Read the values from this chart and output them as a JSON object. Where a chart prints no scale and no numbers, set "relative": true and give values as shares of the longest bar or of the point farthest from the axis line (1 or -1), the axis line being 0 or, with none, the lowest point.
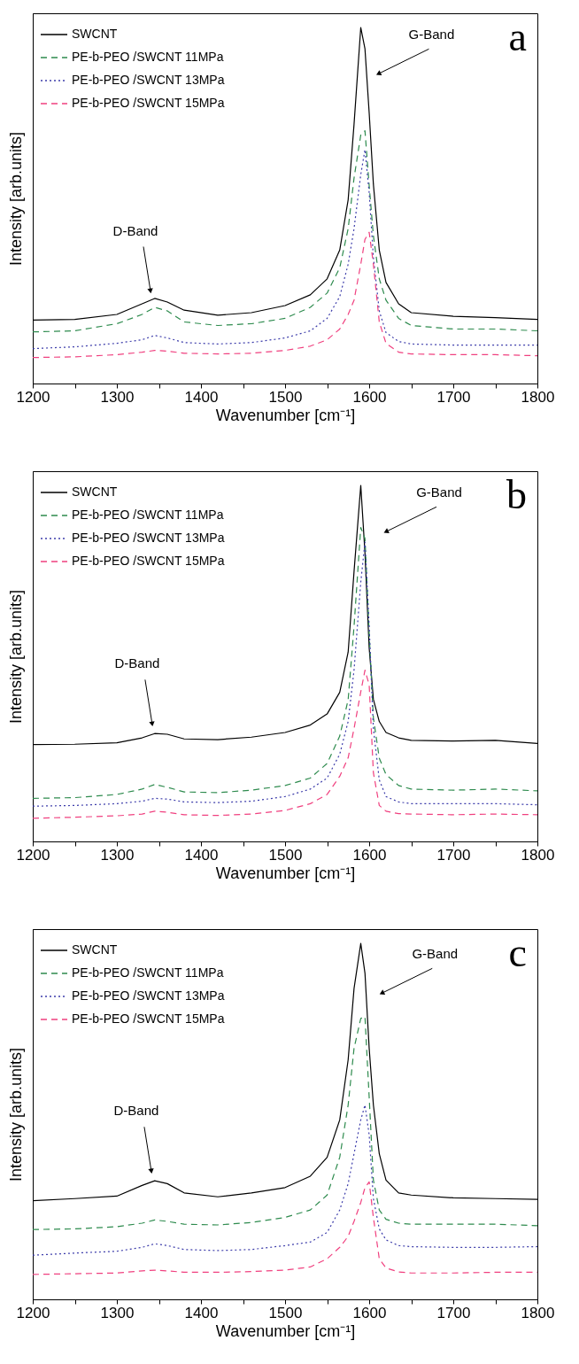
{
  "chart_data": [
    {
      "type": "line",
      "relative": true,
      "xlabel": "Wavenumber [cm⁻¹]",
      "ylabel": "Intensity [arb.units]",
      "xlim": [
        1200,
        1800
      ],
      "xticks": [
        1200,
        {
          "value": 1250,
          "label": null
        },
        1300,
        {
          "value": 1350,
          "label": null
        },
        1400,
        {
          "value": 1450,
          "label": null
        },
        1500,
        {
          "value": 1550,
          "label": null
        },
        1600,
        {
          "value": 1650,
          "label": null
        },
        1700,
        {
          "value": 1750,
          "label": null
        },
        1800
      ],
      "grid": false,
      "legend": "top left",
      "annotations": [
        "a",
        {
          "text": "D-Band",
          "x": 1340,
          "y": 0.26
        },
        {
          "text": "G-Band",
          "x": 1611,
          "y": 0.87
        }
      ],
      "x": [
        1200,
        1250,
        1300,
        1330,
        1345,
        1360,
        1380,
        1420,
        1460,
        1500,
        1530,
        1550,
        1565,
        1575,
        1582,
        1590,
        1595,
        1600,
        1605,
        1612,
        1620,
        1635,
        1650,
        1700,
        1750,
        1800
      ],
      "series": [
        {
          "name": "SWCNT",
          "color": "#000000",
          "line_style": "solid",
          "values": [
            0.178,
            0.18,
            0.194,
            0.224,
            0.239,
            0.229,
            0.206,
            0.192,
            0.199,
            0.219,
            0.249,
            0.294,
            0.375,
            0.516,
            0.728,
            1.0,
            0.94,
            0.76,
            0.56,
            0.375,
            0.284,
            0.224,
            0.199,
            0.189,
            0.185,
            0.18
          ]
        },
        {
          "name": "PE-b-PEO /SWCNT 11MPa",
          "color": "#2e8b4e",
          "line_style": "dashed",
          "values": [
            0.145,
            0.148,
            0.168,
            0.194,
            0.214,
            0.204,
            0.173,
            0.163,
            0.168,
            0.183,
            0.214,
            0.254,
            0.325,
            0.435,
            0.577,
            0.698,
            0.71,
            0.556,
            0.415,
            0.294,
            0.234,
            0.183,
            0.163,
            0.153,
            0.153,
            0.148
          ]
        },
        {
          "name": "PE-b-PEO /SWCNT 13MPa",
          "color": "#3c3caa",
          "line_style": "dotted",
          "values": [
            0.098,
            0.103,
            0.113,
            0.123,
            0.135,
            0.128,
            0.115,
            0.111,
            0.115,
            0.128,
            0.148,
            0.183,
            0.244,
            0.335,
            0.435,
            0.587,
            0.657,
            0.536,
            0.355,
            0.204,
            0.143,
            0.118,
            0.111,
            0.108,
            0.108,
            0.108
          ]
        },
        {
          "name": "PE-b-PEO /SWCNT 15MPa",
          "color": "#f0407f",
          "line_style": "dashed",
          "values": [
            0.073,
            0.075,
            0.081,
            0.088,
            0.093,
            0.091,
            0.085,
            0.083,
            0.085,
            0.093,
            0.105,
            0.123,
            0.153,
            0.194,
            0.234,
            0.335,
            0.405,
            0.425,
            0.335,
            0.173,
            0.113,
            0.088,
            0.083,
            0.081,
            0.081,
            0.078
          ]
        }
      ]
    },
    {
      "type": "line",
      "relative": true,
      "xlabel": "Wavenumber [cm⁻¹]",
      "ylabel": "Intensity [arb.units]",
      "xlim": [
        1200,
        1800
      ],
      "xticks": [
        1200,
        {
          "value": 1250,
          "label": null
        },
        1300,
        {
          "value": 1350,
          "label": null
        },
        1400,
        {
          "value": 1450,
          "label": null
        },
        1500,
        {
          "value": 1550,
          "label": null
        },
        1600,
        {
          "value": 1650,
          "label": null
        },
        1700,
        {
          "value": 1750,
          "label": null
        },
        1800
      ],
      "grid": false,
      "legend": "top left",
      "annotations": [
        "b",
        {
          "text": "D-Band",
          "x": 1342,
          "y": 0.33
        },
        {
          "text": "G-Band",
          "x": 1620,
          "y": 0.87
        }
      ],
      "x": [
        1200,
        1250,
        1300,
        1330,
        1345,
        1360,
        1380,
        1420,
        1460,
        1500,
        1530,
        1550,
        1565,
        1575,
        1582,
        1590,
        1595,
        1600,
        1605,
        1612,
        1620,
        1635,
        1650,
        1700,
        1750,
        1800
      ],
      "series": [
        {
          "name": "SWCNT",
          "color": "#000000",
          "line_style": "solid",
          "values": [
            0.272,
            0.273,
            0.277,
            0.291,
            0.303,
            0.301,
            0.288,
            0.286,
            0.293,
            0.306,
            0.327,
            0.358,
            0.419,
            0.532,
            0.758,
            1.0,
            0.81,
            0.543,
            0.399,
            0.337,
            0.306,
            0.291,
            0.284,
            0.282,
            0.284,
            0.275
          ]
        },
        {
          "name": "PE-b-PEO /SWCNT 11MPa",
          "color": "#2e8b4e",
          "line_style": "dashed",
          "values": [
            0.121,
            0.123,
            0.132,
            0.147,
            0.16,
            0.152,
            0.139,
            0.137,
            0.144,
            0.157,
            0.178,
            0.219,
            0.296,
            0.398,
            0.604,
            0.882,
            0.851,
            0.584,
            0.347,
            0.234,
            0.188,
            0.157,
            0.147,
            0.144,
            0.147,
            0.142
          ]
        },
        {
          "name": "PE-b-PEO /SWCNT 13MPa",
          "color": "#3c3caa",
          "line_style": "dotted",
          "values": [
            0.099,
            0.101,
            0.106,
            0.113,
            0.121,
            0.119,
            0.111,
            0.109,
            0.113,
            0.126,
            0.147,
            0.178,
            0.245,
            0.337,
            0.481,
            0.728,
            0.841,
            0.604,
            0.317,
            0.173,
            0.126,
            0.111,
            0.106,
            0.106,
            0.106,
            0.103
          ]
        },
        {
          "name": "PE-b-PEO /SWCNT 15MPa",
          "color": "#f0407f",
          "line_style": "dashed",
          "values": [
            0.065,
            0.068,
            0.072,
            0.077,
            0.085,
            0.082,
            0.075,
            0.073,
            0.077,
            0.087,
            0.106,
            0.132,
            0.183,
            0.235,
            0.317,
            0.42,
            0.481,
            0.44,
            0.193,
            0.101,
            0.085,
            0.078,
            0.077,
            0.075,
            0.077,
            0.075
          ]
        }
      ]
    },
    {
      "type": "line",
      "relative": true,
      "xlabel": "Wavenumber [cm⁻¹]",
      "ylabel": "Intensity [arb.units]",
      "xlim": [
        1200,
        1800
      ],
      "xticks": [
        1200,
        {
          "value": 1250,
          "label": null
        },
        1300,
        {
          "value": 1350,
          "label": null
        },
        1400,
        {
          "value": 1450,
          "label": null
        },
        1500,
        {
          "value": 1550,
          "label": null
        },
        1600,
        {
          "value": 1650,
          "label": null
        },
        1700,
        {
          "value": 1750,
          "label": null
        },
        1800
      ],
      "grid": false,
      "legend": "top left",
      "annotations": [
        "c",
        {
          "text": "D-Band",
          "x": 1341,
          "y": 0.36
        },
        {
          "text": "G-Band",
          "x": 1615,
          "y": 0.86
        }
      ],
      "x": [
        1200,
        1250,
        1300,
        1330,
        1345,
        1360,
        1380,
        1420,
        1460,
        1500,
        1530,
        1550,
        1565,
        1575,
        1582,
        1590,
        1595,
        1600,
        1605,
        1612,
        1620,
        1635,
        1650,
        1700,
        1750,
        1800
      ],
      "series": [
        {
          "name": "SWCNT",
          "color": "#000000",
          "line_style": "solid",
          "values": [
            0.277,
            0.283,
            0.29,
            0.32,
            0.333,
            0.325,
            0.299,
            0.288,
            0.299,
            0.314,
            0.346,
            0.399,
            0.504,
            0.673,
            0.873,
            1.0,
            0.916,
            0.705,
            0.546,
            0.409,
            0.335,
            0.299,
            0.293,
            0.285,
            0.283,
            0.281
          ]
        },
        {
          "name": "PE-b-PEO /SWCNT 11MPa",
          "color": "#2e8b4e",
          "line_style": "dashed",
          "values": [
            0.196,
            0.198,
            0.204,
            0.214,
            0.223,
            0.219,
            0.211,
            0.209,
            0.216,
            0.23,
            0.251,
            0.293,
            0.399,
            0.546,
            0.705,
            0.789,
            0.794,
            0.568,
            0.335,
            0.251,
            0.225,
            0.214,
            0.211,
            0.211,
            0.211,
            0.207
          ]
        },
        {
          "name": "PE-b-PEO /SWCNT 13MPa",
          "color": "#3c3caa",
          "line_style": "dotted",
          "values": [
            0.124,
            0.13,
            0.135,
            0.146,
            0.156,
            0.151,
            0.14,
            0.137,
            0.14,
            0.151,
            0.161,
            0.188,
            0.251,
            0.325,
            0.409,
            0.504,
            0.546,
            0.462,
            0.283,
            0.198,
            0.167,
            0.151,
            0.148,
            0.146,
            0.146,
            0.148
          ]
        },
        {
          "name": "PE-b-PEO /SWCNT 15MPa",
          "color": "#f0407f",
          "line_style": "dashed",
          "values": [
            0.07,
            0.072,
            0.074,
            0.08,
            0.082,
            0.08,
            0.076,
            0.076,
            0.078,
            0.082,
            0.091,
            0.114,
            0.146,
            0.177,
            0.219,
            0.272,
            0.314,
            0.33,
            0.23,
            0.114,
            0.088,
            0.077,
            0.074,
            0.074,
            0.076,
            0.076
          ]
        }
      ]
    }
  ]
}
